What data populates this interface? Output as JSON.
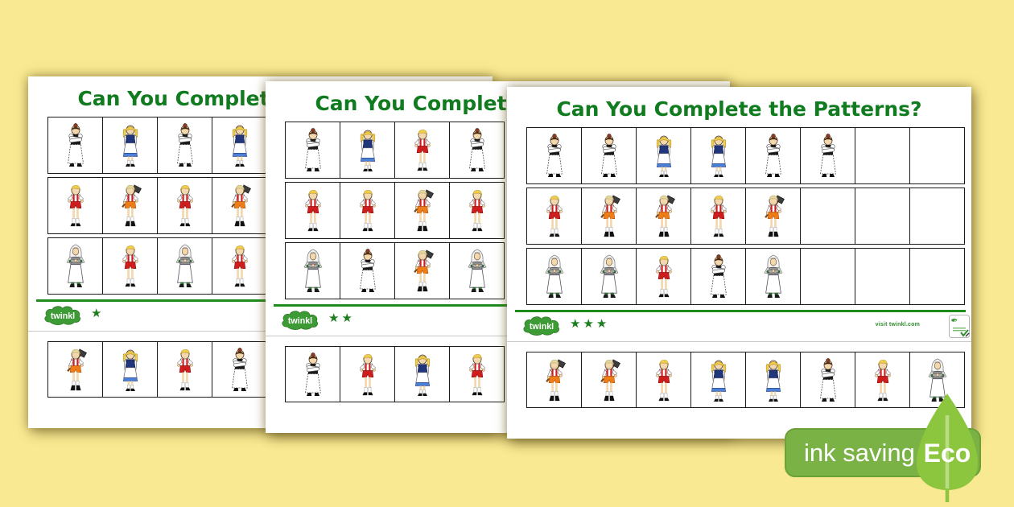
{
  "page_title": "Can You Complete the Patterns?",
  "brand": {
    "logo_text": "twinkl",
    "visit_text": "visit twinkl.com"
  },
  "eco": {
    "ink_saving_label": "ink saving",
    "eco_label": "Eco"
  },
  "colors": {
    "background_yellow": "#f9e992",
    "title_green": "#117b20",
    "rule_green": "#1e8c1e",
    "star_green": "#1e7d1e",
    "logo_green": "#3d9b35",
    "eco_rect_green": "#7ab246",
    "eco_leaf_green": "#8cc63e"
  },
  "worksheets": [
    {
      "name": "worksheet-1-star",
      "stars": 1,
      "rows": [
        [
          "mother",
          "girl",
          "mother",
          "girl"
        ],
        [
          "boy",
          "woodcutter",
          "boy",
          "woodcutter"
        ],
        [
          "grandma",
          "boy",
          "grandma",
          "boy"
        ]
      ],
      "strip": [
        "woodcutter",
        "girl",
        "boy",
        "mother"
      ]
    },
    {
      "name": "worksheet-2-star",
      "stars": 2,
      "rows": [
        [
          "mother",
          "girl",
          "boy",
          "mother"
        ],
        [
          "boy",
          "boy",
          "woodcutter",
          "boy"
        ],
        [
          "grandma",
          "mother",
          "woodcutter",
          "grandma"
        ]
      ],
      "strip": [
        "mother",
        "boy",
        "girl",
        "boy"
      ]
    },
    {
      "name": "worksheet-3-star",
      "stars": 3,
      "rows": [
        [
          "mother",
          "mother",
          "girl",
          "girl",
          "mother",
          "mother",
          "empty",
          "empty"
        ],
        [
          "boy",
          "woodcutter",
          "woodcutter",
          "boy",
          "woodcutter",
          "empty",
          "empty",
          "empty"
        ],
        [
          "grandma",
          "grandma",
          "boy",
          "mother",
          "grandma",
          "empty",
          "empty",
          "empty"
        ]
      ],
      "strip": [
        "woodcutter",
        "woodcutter",
        "boy",
        "girl",
        "girl",
        "mother",
        "boy",
        "grandma"
      ]
    }
  ]
}
